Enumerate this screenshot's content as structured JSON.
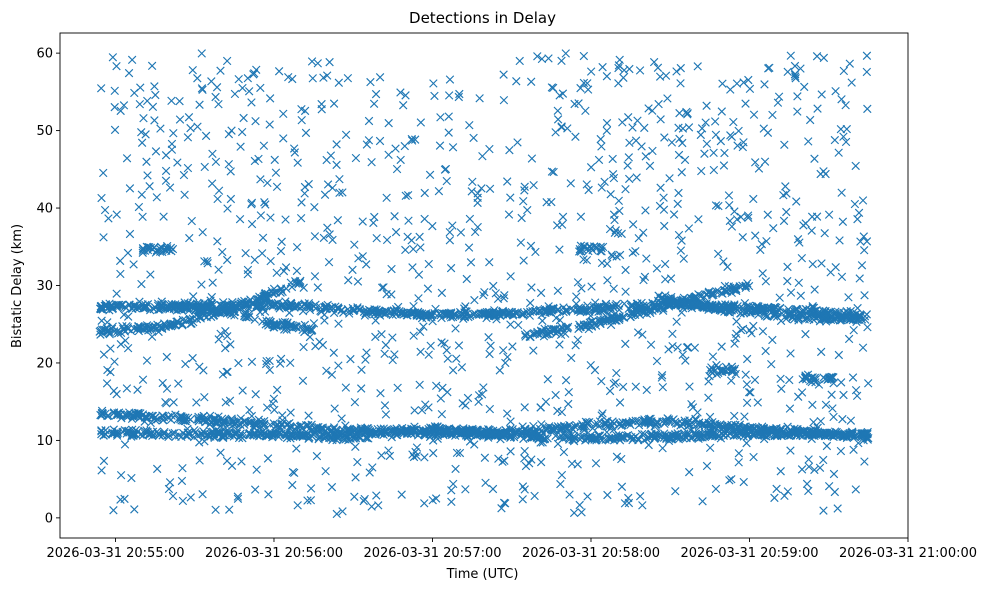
{
  "chart_data": {
    "type": "scatter",
    "title": "Detections in Delay",
    "xlabel": "Time (UTC)",
    "ylabel": "Bistatic Delay (km)",
    "marker": "x",
    "color": "#1f77b4",
    "grid": false,
    "x_range": [
      "2026-03-31 20:54:39",
      "2026-03-31 21:00:00"
    ],
    "ylim": [
      -2.6,
      62.6
    ],
    "x_ticks": [
      "2026-03-31 20:55:00",
      "2026-03-31 20:56:00",
      "2026-03-31 20:57:00",
      "2026-03-31 20:58:00",
      "2026-03-31 20:59:00",
      "2026-03-31 21:00:00"
    ],
    "y_ticks": [
      0,
      10,
      20,
      30,
      40,
      50,
      60
    ],
    "time_span": [
      "2026-03-31 20:54:54",
      "2026-03-31 20:59:45"
    ],
    "tracks": [
      {
        "points": [
          [
            "20:54:54",
            27.2
          ],
          [
            "20:55:30",
            27.3
          ],
          [
            "20:56:00",
            27.5
          ],
          [
            "20:56:30",
            26.8
          ],
          [
            "20:57:00",
            26.2
          ],
          [
            "20:57:30",
            26.4
          ],
          [
            "20:58:00",
            27.0
          ],
          [
            "20:58:30",
            27.6
          ],
          [
            "20:59:00",
            27.2
          ],
          [
            "20:59:45",
            26.0
          ]
        ]
      },
      {
        "points": [
          [
            "20:54:54",
            24.0
          ],
          [
            "20:55:20",
            24.8
          ],
          [
            "20:55:40",
            26.5
          ],
          [
            "20:56:00",
            29.0
          ],
          [
            "20:56:10",
            30.5
          ]
        ]
      },
      {
        "points": [
          [
            "20:55:20",
            27.5
          ],
          [
            "20:55:45",
            26.5
          ],
          [
            "20:56:00",
            25.0
          ],
          [
            "20:56:15",
            24.3
          ]
        ]
      },
      {
        "points": [
          [
            "20:57:35",
            23.5
          ],
          [
            "20:58:00",
            25.0
          ],
          [
            "20:58:25",
            27.0
          ],
          [
            "20:58:40",
            28.5
          ],
          [
            "20:59:00",
            30.0
          ]
        ]
      },
      {
        "points": [
          [
            "20:58:25",
            28.5
          ],
          [
            "20:58:50",
            27.0
          ],
          [
            "20:59:15",
            26.0
          ],
          [
            "20:59:45",
            25.6
          ]
        ]
      },
      {
        "points": [
          [
            "20:54:54",
            13.5
          ],
          [
            "20:55:30",
            12.8
          ],
          [
            "20:56:00",
            12.0
          ],
          [
            "20:56:30",
            11.3
          ],
          [
            "20:57:00",
            11.0
          ],
          [
            "20:57:30",
            11.0
          ],
          [
            "20:58:00",
            12.0
          ],
          [
            "20:58:30",
            12.5
          ],
          [
            "20:59:00",
            11.5
          ],
          [
            "20:59:45",
            10.5
          ]
        ]
      },
      {
        "points": [
          [
            "20:54:54",
            11.0
          ],
          [
            "20:55:30",
            10.8
          ],
          [
            "20:56:00",
            10.8
          ],
          [
            "20:56:30",
            10.5
          ],
          [
            "20:57:00",
            11.5
          ],
          [
            "20:57:30",
            10.5
          ],
          [
            "20:58:00",
            10.3
          ],
          [
            "20:58:30",
            10.5
          ],
          [
            "20:59:00",
            10.8
          ],
          [
            "20:59:45",
            10.8
          ]
        ]
      },
      {
        "points": [
          [
            "20:55:10",
            34.7
          ],
          [
            "20:55:22",
            34.8
          ]
        ]
      },
      {
        "points": [
          [
            "20:57:55",
            34.7
          ],
          [
            "20:58:05",
            34.8
          ]
        ]
      },
      {
        "points": [
          [
            "20:58:45",
            19.0
          ],
          [
            "20:58:55",
            19.0
          ]
        ]
      },
      {
        "points": [
          [
            "20:59:20",
            18.0
          ],
          [
            "20:59:33",
            18.0
          ]
        ]
      }
    ],
    "clutter": {
      "y_range": [
        0.5,
        60
      ]
    }
  }
}
